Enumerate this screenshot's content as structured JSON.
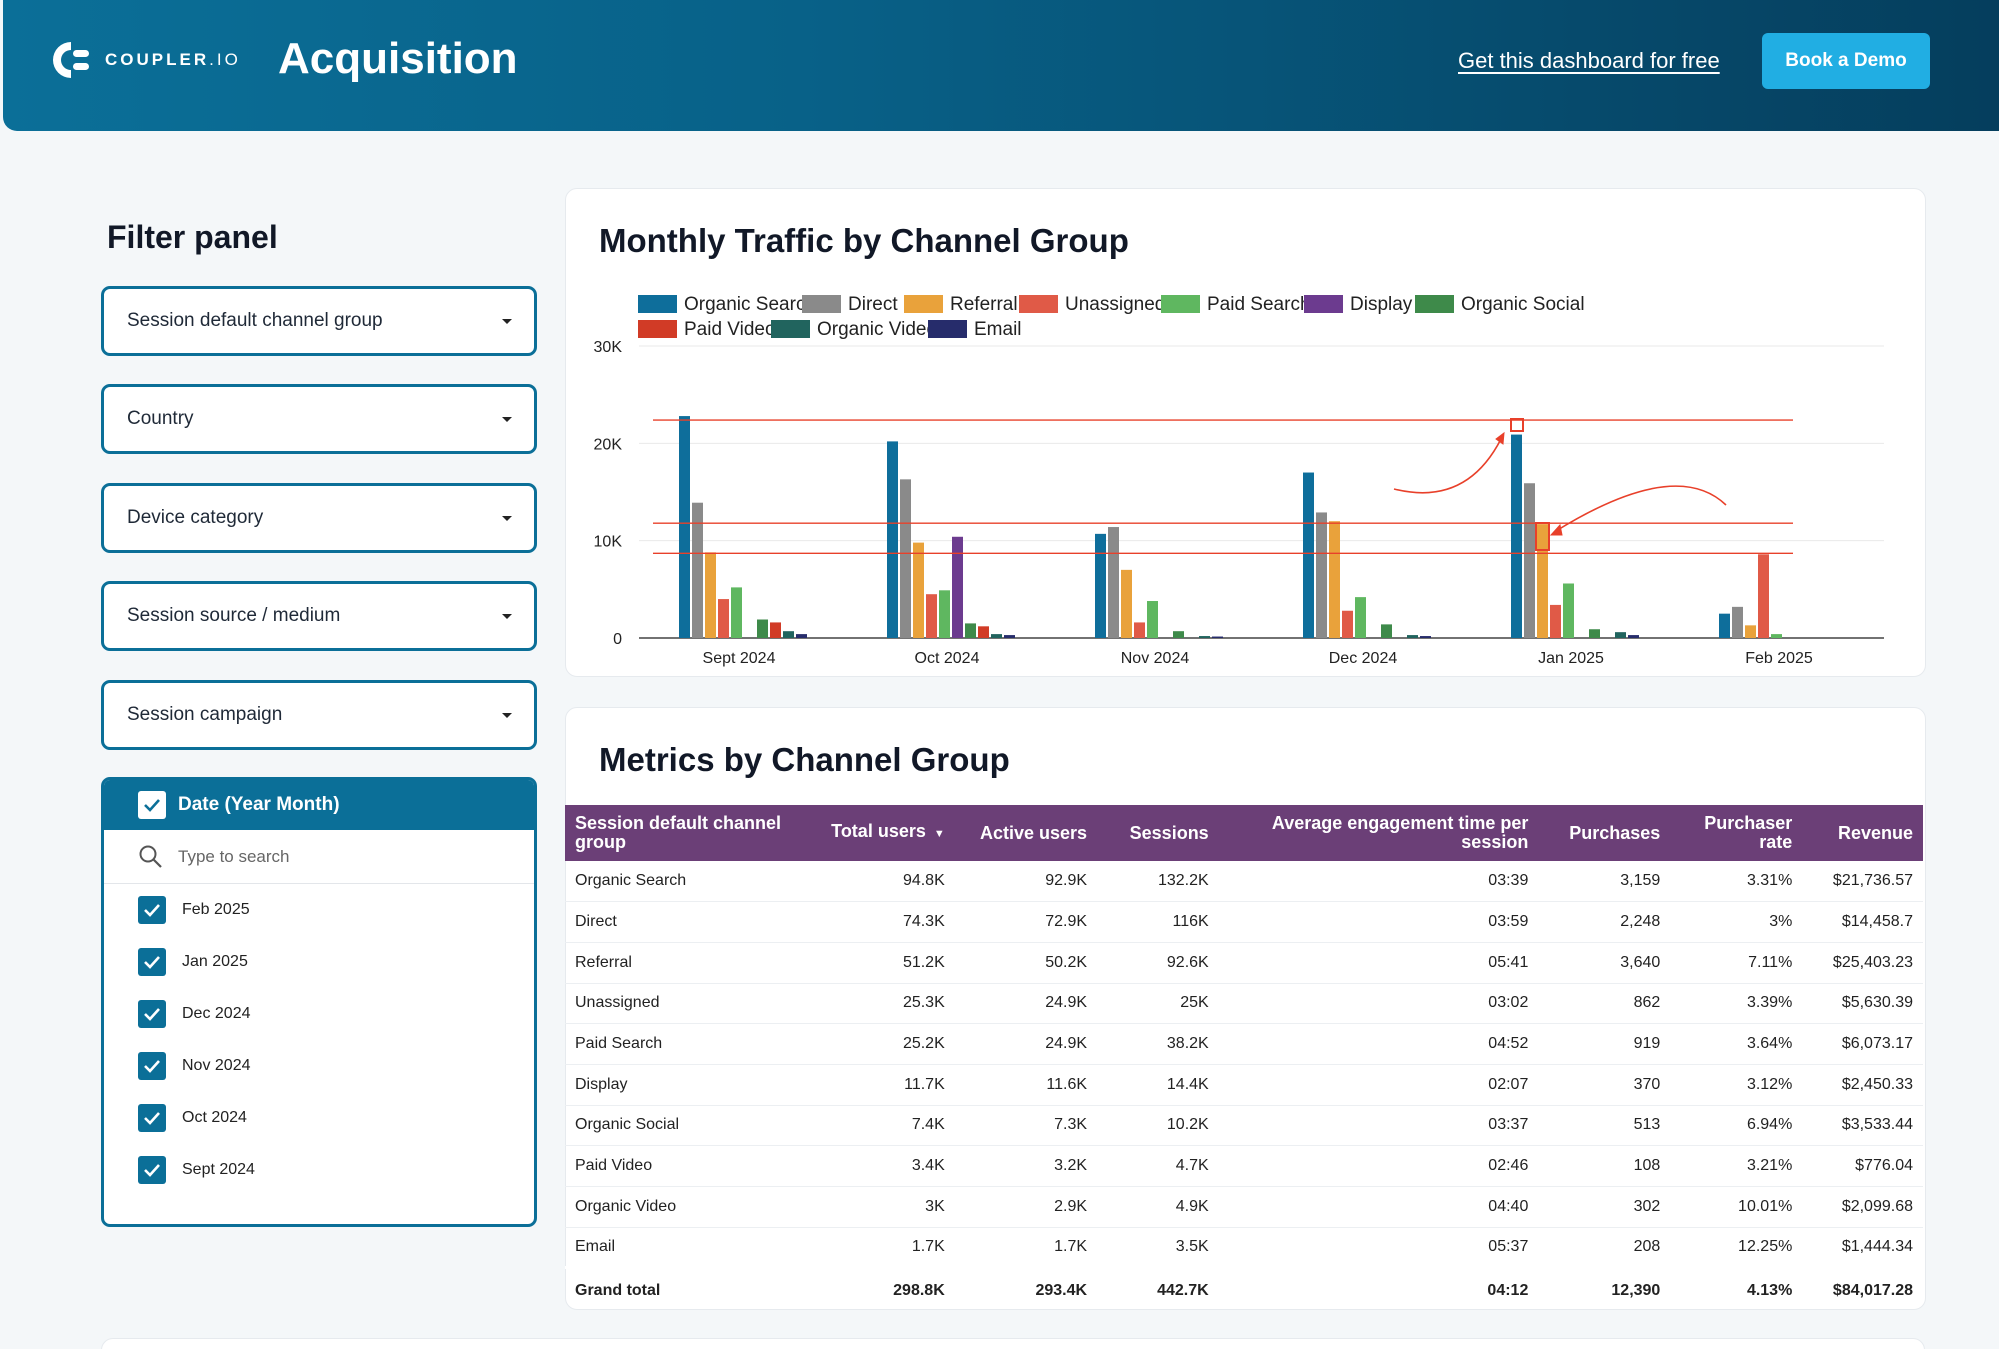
{
  "header": {
    "logo_text_bold": "COUPLER",
    "logo_text_light": ".IO",
    "title": "Acquisition",
    "free_link": "Get this dashboard for free",
    "demo_button": "Book a Demo"
  },
  "filter_panel": {
    "title": "Filter panel",
    "dropdowns": [
      "Session default channel group",
      "Country",
      "Device category",
      "Session source / medium",
      "Session campaign"
    ],
    "date_filter": {
      "title": "Date (Year Month)",
      "search_placeholder": "Type to search",
      "items": [
        "Feb 2025",
        "Jan 2025",
        "Dec 2024",
        "Nov 2024",
        "Oct 2024",
        "Sept 2024"
      ]
    }
  },
  "chart_data": {
    "type": "bar",
    "title": "Monthly Traffic by Channel Group",
    "categories": [
      "Sept 2024",
      "Oct 2024",
      "Nov 2024",
      "Dec 2024",
      "Jan 2025",
      "Feb 2025"
    ],
    "ylim": [
      0,
      30000
    ],
    "yticks": [
      {
        "v": 0,
        "label": "0"
      },
      {
        "v": 10000,
        "label": "10K"
      },
      {
        "v": 20000,
        "label": "20K"
      },
      {
        "v": 30000,
        "label": "30K"
      }
    ],
    "grid": true,
    "legend_position": "top",
    "series": [
      {
        "name": "Organic Search",
        "color": "#0e6e9b",
        "values": [
          22800,
          20200,
          10700,
          17000,
          20900,
          2500
        ]
      },
      {
        "name": "Direct",
        "color": "#8a8a8a",
        "values": [
          13900,
          16300,
          11400,
          12900,
          15900,
          3200
        ]
      },
      {
        "name": "Referral",
        "color": "#e9a23b",
        "values": [
          8800,
          9800,
          7000,
          12000,
          11700,
          1300
        ]
      },
      {
        "name": "Unassigned",
        "color": "#e05a47",
        "values": [
          4000,
          4500,
          1600,
          2800,
          3400,
          8600
        ]
      },
      {
        "name": "Paid Search",
        "color": "#5fb760",
        "values": [
          5200,
          4900,
          3800,
          4200,
          5600,
          400
        ]
      },
      {
        "name": "Display",
        "color": "#6c3b8f",
        "values": [
          0,
          10400,
          0,
          0,
          0,
          0
        ]
      },
      {
        "name": "Organic Social",
        "color": "#3e8a4a",
        "values": [
          1900,
          1500,
          700,
          1400,
          900,
          0
        ]
      },
      {
        "name": "Paid Video",
        "color": "#d13b26",
        "values": [
          1600,
          1200,
          0,
          0,
          0,
          0
        ]
      },
      {
        "name": "Organic Video",
        "color": "#21645e",
        "values": [
          700,
          400,
          200,
          300,
          600,
          0
        ]
      },
      {
        "name": "Email",
        "color": "#262c6b",
        "values": [
          400,
          300,
          150,
          200,
          300,
          0
        ]
      }
    ]
  },
  "table": {
    "title": "Metrics by Channel Group",
    "columns": [
      "Session default channel group",
      "Total users",
      "Active users",
      "Sessions",
      "Average engagement time per session",
      "Purchases",
      "Purchaser rate",
      "Revenue"
    ],
    "sort_indicator": "▼",
    "rows": [
      [
        "Organic Search",
        "94.8K",
        "92.9K",
        "132.2K",
        "03:39",
        "3,159",
        "3.31%",
        "$21,736.57"
      ],
      [
        "Direct",
        "74.3K",
        "72.9K",
        "116K",
        "03:59",
        "2,248",
        "3%",
        "$14,458.7"
      ],
      [
        "Referral",
        "51.2K",
        "50.2K",
        "92.6K",
        "05:41",
        "3,640",
        "7.11%",
        "$25,403.23"
      ],
      [
        "Unassigned",
        "25.3K",
        "24.9K",
        "25K",
        "03:02",
        "862",
        "3.39%",
        "$5,630.39"
      ],
      [
        "Paid Search",
        "25.2K",
        "24.9K",
        "38.2K",
        "04:52",
        "919",
        "3.64%",
        "$6,073.17"
      ],
      [
        "Display",
        "11.7K",
        "11.6K",
        "14.4K",
        "02:07",
        "370",
        "3.12%",
        "$2,450.33"
      ],
      [
        "Organic Social",
        "7.4K",
        "7.3K",
        "10.2K",
        "03:37",
        "513",
        "6.94%",
        "$3,533.44"
      ],
      [
        "Paid Video",
        "3.4K",
        "3.2K",
        "4.7K",
        "02:46",
        "108",
        "3.21%",
        "$776.04"
      ],
      [
        "Organic Video",
        "3K",
        "2.9K",
        "4.9K",
        "04:40",
        "302",
        "10.01%",
        "$2,099.68"
      ],
      [
        "Email",
        "1.7K",
        "1.7K",
        "3.5K",
        "05:37",
        "208",
        "12.25%",
        "$1,444.34"
      ]
    ],
    "total": [
      "Grand total",
      "298.8K",
      "293.4K",
      "442.7K",
      "04:12",
      "12,390",
      "4.13%",
      "$84,017.28"
    ]
  },
  "colors": {
    "brand": "#0b6f98",
    "accent": "#21aee3",
    "table_header": "#6b3f77",
    "annotation": "#e8402a"
  }
}
